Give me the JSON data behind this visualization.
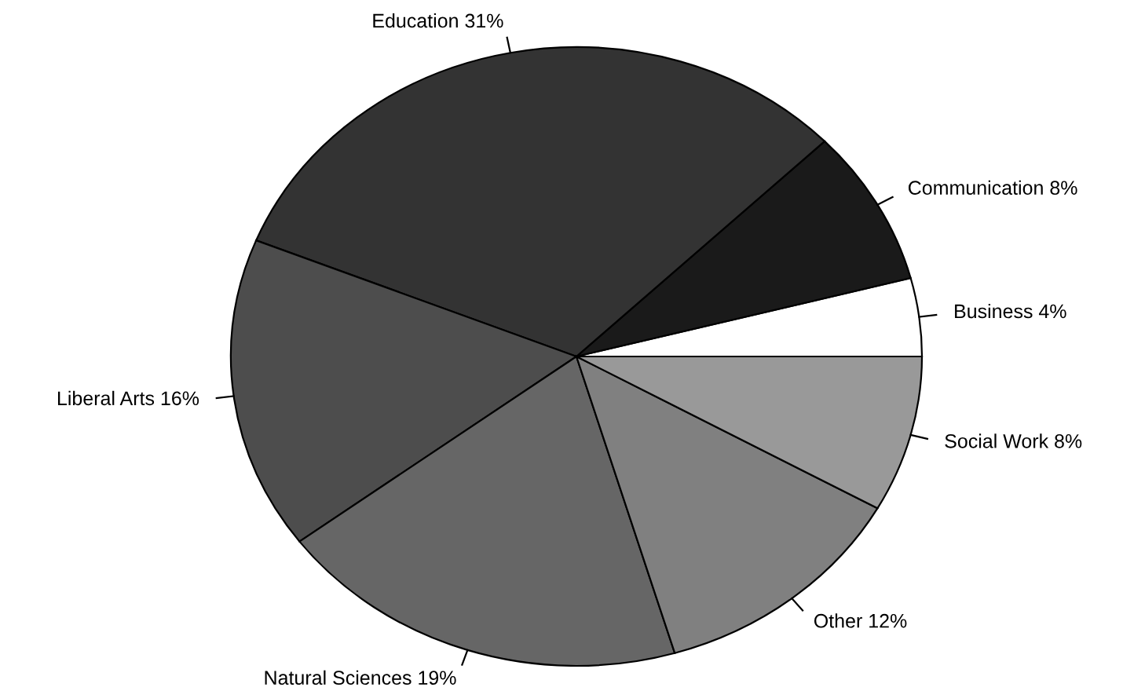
{
  "chart_data": {
    "type": "pie",
    "categories": [
      "Business",
      "Communication",
      "Education",
      "Liberal Arts",
      "Natural Sciences",
      "Other",
      "Social Work"
    ],
    "values": [
      4,
      8,
      31,
      16,
      19,
      12,
      8
    ],
    "value_labels": [
      "4%",
      "8%",
      "31%",
      "16%",
      "19%",
      "12%",
      "8%"
    ],
    "colors": [
      "#ffffff",
      "#1a1a1a",
      "#333333",
      "#4d4d4d",
      "#666666",
      "#808080",
      "#999999"
    ],
    "legend": false
  }
}
